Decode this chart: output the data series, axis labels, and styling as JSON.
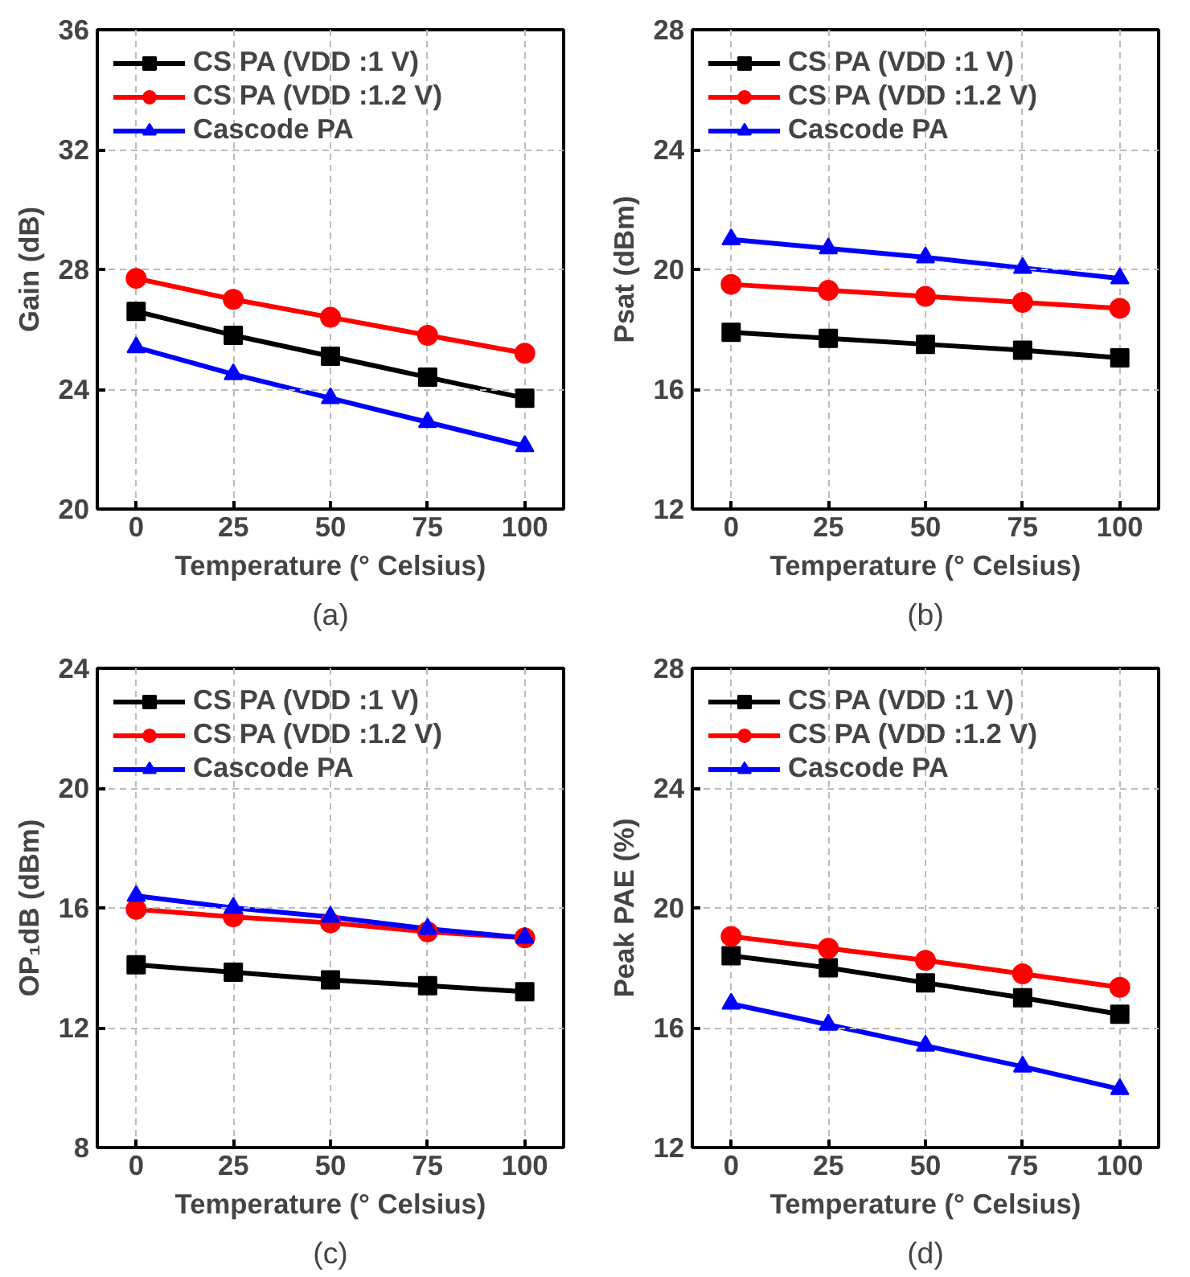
{
  "chart_data": [
    {
      "type": "line",
      "xlabel": "Temperature (° Celsius)",
      "ylabel": "Gain (dB)",
      "annotations": [
        "(a)"
      ],
      "x": [
        0,
        25,
        50,
        75,
        100
      ],
      "xlim": [
        -10,
        110
      ],
      "xticks": [
        0,
        25,
        50,
        75,
        100
      ],
      "ylim": [
        20,
        36
      ],
      "yticks": [
        20,
        24,
        28,
        32,
        36
      ],
      "grid": true,
      "legend": "top left",
      "line_style": "solid",
      "series": [
        {
          "name": "CS PA (VDD :1 V)",
          "color": "#000000",
          "marker": "square",
          "values": [
            26.6,
            25.8,
            25.1,
            24.4,
            23.7
          ]
        },
        {
          "name": "CS PA (VDD :1.2 V)",
          "color": "#ff0000",
          "marker": "circle",
          "values": [
            27.7,
            27.0,
            26.4,
            25.8,
            25.2
          ]
        },
        {
          "name": "Cascode PA",
          "color": "#0000ff",
          "marker": "triangle",
          "values": [
            25.4,
            24.5,
            23.7,
            22.9,
            22.1
          ]
        }
      ]
    },
    {
      "type": "line",
      "xlabel": "Temperature (° Celsius)",
      "ylabel": "Psat (dBm)",
      "annotations": [
        "(b)"
      ],
      "x": [
        0,
        25,
        50,
        75,
        100
      ],
      "xlim": [
        -10,
        110
      ],
      "xticks": [
        0,
        25,
        50,
        75,
        100
      ],
      "ylim": [
        12,
        28
      ],
      "yticks": [
        12,
        16,
        20,
        24,
        28
      ],
      "grid": true,
      "legend": "top left",
      "line_style": "solid",
      "series": [
        {
          "name": "CS PA (VDD :1 V)",
          "color": "#000000",
          "marker": "square",
          "values": [
            17.9,
            17.7,
            17.5,
            17.3,
            17.05
          ]
        },
        {
          "name": "CS PA (VDD :1.2 V)",
          "color": "#ff0000",
          "marker": "circle",
          "values": [
            19.5,
            19.3,
            19.1,
            18.9,
            18.7
          ]
        },
        {
          "name": "Cascode PA",
          "color": "#0000ff",
          "marker": "triangle",
          "values": [
            21.0,
            20.7,
            20.4,
            20.05,
            19.7
          ]
        }
      ]
    },
    {
      "type": "line",
      "xlabel": "Temperature (° Celsius)",
      "ylabel": "OP₁dB (dBm)",
      "annotations": [
        "(c)"
      ],
      "x": [
        0,
        25,
        50,
        75,
        100
      ],
      "xlim": [
        -10,
        110
      ],
      "xticks": [
        0,
        25,
        50,
        75,
        100
      ],
      "ylim": [
        8,
        24
      ],
      "yticks": [
        8,
        12,
        16,
        20,
        24
      ],
      "grid": true,
      "legend": "top left",
      "line_style": "solid",
      "series": [
        {
          "name": "CS PA (VDD :1 V)",
          "color": "#000000",
          "marker": "square",
          "values": [
            14.1,
            13.85,
            13.6,
            13.4,
            13.2
          ]
        },
        {
          "name": "CS PA (VDD :1.2 V)",
          "color": "#ff0000",
          "marker": "circle",
          "values": [
            15.95,
            15.7,
            15.5,
            15.2,
            15.0
          ]
        },
        {
          "name": "Cascode PA",
          "color": "#0000ff",
          "marker": "triangle",
          "values": [
            16.4,
            16.0,
            15.7,
            15.3,
            15.0
          ]
        }
      ]
    },
    {
      "type": "line",
      "xlabel": "Temperature (° Celsius)",
      "ylabel": "Peak PAE (%)",
      "annotations": [
        "(d)"
      ],
      "x": [
        0,
        25,
        50,
        75,
        100
      ],
      "xlim": [
        -10,
        110
      ],
      "xticks": [
        0,
        25,
        50,
        75,
        100
      ],
      "ylim": [
        12,
        28
      ],
      "yticks": [
        12,
        16,
        20,
        24,
        28
      ],
      "grid": true,
      "legend": "top left",
      "line_style": "solid",
      "series": [
        {
          "name": "CS PA (VDD :1 V)",
          "color": "#000000",
          "marker": "square",
          "values": [
            18.4,
            18.0,
            17.5,
            17.0,
            16.45
          ]
        },
        {
          "name": "CS PA (VDD :1.2 V)",
          "color": "#ff0000",
          "marker": "circle",
          "values": [
            19.05,
            18.65,
            18.25,
            17.8,
            17.35
          ]
        },
        {
          "name": "Cascode PA",
          "color": "#0000ff",
          "marker": "triangle",
          "values": [
            16.8,
            16.1,
            15.4,
            14.7,
            13.95
          ]
        }
      ]
    }
  ]
}
